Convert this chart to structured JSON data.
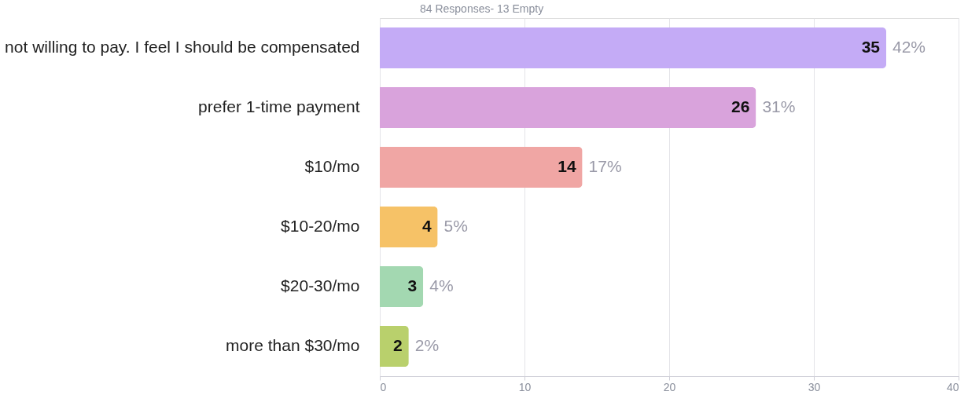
{
  "chart_data": {
    "type": "bar",
    "orientation": "horizontal",
    "title": "84 Responses- 13 Empty",
    "categories": [
      "not willing to pay. I feel I should be compensated",
      "prefer 1-time payment",
      "$10/mo",
      "$10-20/mo",
      "$20-30/mo",
      "more than $30/mo"
    ],
    "values": [
      35,
      26,
      14,
      4,
      3,
      2
    ],
    "colors": [
      "#c4abf6",
      "#d9a3dc",
      "#f0a6a4",
      "#f6c267",
      "#a3d8b1",
      "#b9d06c"
    ],
    "data_labels": true,
    "annotations": [
      {
        "text": "42%",
        "x": 35,
        "y": "not willing to pay. I feel I should be compensated"
      },
      {
        "text": "31%",
        "x": 26,
        "y": "prefer 1-time payment"
      },
      {
        "text": "17%",
        "x": 14,
        "y": "$10/mo"
      },
      {
        "text": "5%",
        "x": 4,
        "y": "$10-20/mo"
      },
      {
        "text": "4%",
        "x": 3,
        "y": "$20-30/mo"
      },
      {
        "text": "2%",
        "x": 2,
        "y": "more than $30/mo"
      }
    ],
    "xlim": [
      0,
      40
    ],
    "xticks": [
      0,
      10,
      20,
      30,
      40
    ],
    "grid": "x"
  }
}
